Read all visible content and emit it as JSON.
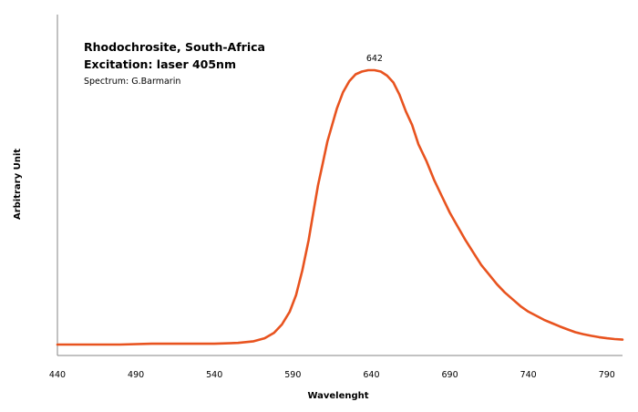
{
  "chart_data": {
    "type": "line",
    "title": "Rhodochrosite, South-Africa",
    "subtitle": "Excitation: laser 405nm",
    "credit": "Spectrum: G.Barmarin",
    "xlabel": "Wavelenght",
    "ylabel": "Arbitrary Unit",
    "xlim": [
      440,
      800
    ],
    "ylim": [
      0,
      1.1
    ],
    "xticks": [
      440,
      490,
      540,
      590,
      640,
      690,
      740,
      790
    ],
    "y_ticks_shown": false,
    "grid": false,
    "legend": "none",
    "line_color": "#e8531f",
    "annotation": {
      "label": "642",
      "x": 642,
      "y": 1.0
    },
    "series": [
      {
        "x": [
          440,
          460,
          480,
          500,
          520,
          540,
          555,
          565,
          572,
          578,
          583,
          588,
          592,
          596,
          600,
          603,
          606,
          609,
          612,
          615,
          618,
          622,
          626,
          630,
          634,
          638,
          642,
          646,
          650,
          654,
          658,
          662,
          666,
          670,
          675,
          680,
          685,
          690,
          695,
          700,
          705,
          710,
          715,
          720,
          725,
          730,
          735,
          740,
          745,
          750,
          755,
          760,
          765,
          770,
          775,
          780,
          785,
          790,
          795,
          800
        ],
        "y": [
          0.0,
          0.0,
          0.0,
          0.003,
          0.003,
          0.003,
          0.006,
          0.012,
          0.023,
          0.043,
          0.073,
          0.12,
          0.18,
          0.27,
          0.38,
          0.48,
          0.58,
          0.66,
          0.74,
          0.8,
          0.86,
          0.92,
          0.96,
          0.985,
          0.995,
          1.0,
          1.0,
          0.995,
          0.98,
          0.955,
          0.91,
          0.85,
          0.8,
          0.73,
          0.67,
          0.6,
          0.54,
          0.48,
          0.43,
          0.38,
          0.335,
          0.29,
          0.255,
          0.22,
          0.19,
          0.165,
          0.14,
          0.12,
          0.105,
          0.09,
          0.078,
          0.066,
          0.055,
          0.045,
          0.038,
          0.032,
          0.027,
          0.023,
          0.02,
          0.018
        ]
      }
    ]
  }
}
